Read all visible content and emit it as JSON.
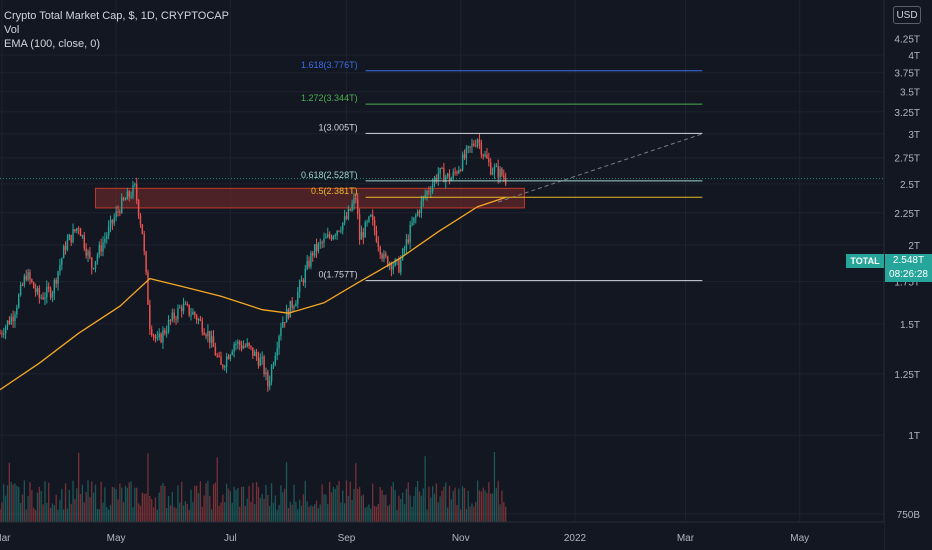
{
  "legend": {
    "symbol": "Crypto Total Market Cap, $, 1D, CRYPTOCAP",
    "vol": "Vol",
    "ema": "EMA (100, close, 0)"
  },
  "currency_button": "USD",
  "price_badge": {
    "name": "TOTAL",
    "value": "2.548T",
    "countdown": "08:26:28"
  },
  "colors": {
    "background": "#131722",
    "up": "#26a69a",
    "down": "#ef5350",
    "ema": "#f5a623",
    "zone_fill": "#7b2b2b",
    "zone_border": "#c0392b"
  },
  "chart_data": {
    "type": "candlestick",
    "symbol": "TOTAL",
    "y_axis": {
      "scale": "log",
      "ticks": [
        "4T",
        "3.75T",
        "3.5T",
        "3.25T",
        "3T",
        "2.75T",
        "2.5T",
        "2.25T",
        "2T",
        "1.75T",
        "1.5T",
        "1.25T",
        "1T",
        "750B"
      ],
      "tick_values": [
        4.0,
        3.75,
        3.5,
        3.25,
        3.0,
        2.75,
        2.5,
        2.25,
        2.0,
        1.75,
        1.5,
        1.25,
        1.0,
        0.75
      ],
      "partial_top_tick": "4.25T",
      "range": [
        0.72,
        4.3
      ]
    },
    "x_axis": {
      "ticks": [
        "Mar",
        "May",
        "Jul",
        "Sep",
        "Nov",
        "2022",
        "Mar",
        "May"
      ],
      "tick_dates": [
        "2021-03-01",
        "2021-05-01",
        "2021-07-01",
        "2021-09-01",
        "2021-11-01",
        "2022-01-01",
        "2022-03-01",
        "2022-05-01"
      ],
      "range": [
        "2021-02-28",
        "2022-06-15"
      ]
    },
    "price_path": [
      [
        "2021-02-28",
        1.45
      ],
      [
        "2021-03-07",
        1.55
      ],
      [
        "2021-03-14",
        1.8
      ],
      [
        "2021-03-21",
        1.65
      ],
      [
        "2021-03-28",
        1.7
      ],
      [
        "2021-04-04",
        2.0
      ],
      [
        "2021-04-11",
        2.15
      ],
      [
        "2021-04-18",
        1.85
      ],
      [
        "2021-04-25",
        2.05
      ],
      [
        "2021-05-03",
        2.3
      ],
      [
        "2021-05-11",
        2.46
      ],
      [
        "2021-05-15",
        2.1
      ],
      [
        "2021-05-19",
        1.5
      ],
      [
        "2021-05-23",
        1.4
      ],
      [
        "2021-05-29",
        1.5
      ],
      [
        "2021-06-05",
        1.6
      ],
      [
        "2021-06-12",
        1.55
      ],
      [
        "2021-06-19",
        1.45
      ],
      [
        "2021-06-26",
        1.28
      ],
      [
        "2021-07-03",
        1.4
      ],
      [
        "2021-07-10",
        1.38
      ],
      [
        "2021-07-18",
        1.3
      ],
      [
        "2021-07-21",
        1.2
      ],
      [
        "2021-07-28",
        1.5
      ],
      [
        "2021-08-05",
        1.65
      ],
      [
        "2021-08-14",
        1.95
      ],
      [
        "2021-08-22",
        2.05
      ],
      [
        "2021-09-01",
        2.2
      ],
      [
        "2021-09-06",
        2.38
      ],
      [
        "2021-09-08",
        2.05
      ],
      [
        "2021-09-14",
        2.2
      ],
      [
        "2021-09-21",
        1.9
      ],
      [
        "2021-09-29",
        1.85
      ],
      [
        "2021-10-06",
        2.15
      ],
      [
        "2021-10-13",
        2.4
      ],
      [
        "2021-10-20",
        2.6
      ],
      [
        "2021-10-27",
        2.55
      ],
      [
        "2021-11-03",
        2.75
      ],
      [
        "2021-11-10",
        2.96
      ],
      [
        "2021-11-13",
        2.8
      ],
      [
        "2021-11-17",
        2.65
      ],
      [
        "2021-11-22",
        2.6
      ],
      [
        "2021-11-25",
        2.548
      ]
    ],
    "ema": {
      "name": "EMA (100, close, 0)",
      "points": [
        [
          "2021-02-28",
          1.18
        ],
        [
          "2021-03-21",
          1.3
        ],
        [
          "2021-04-11",
          1.45
        ],
        [
          "2021-05-03",
          1.6
        ],
        [
          "2021-05-19",
          1.77
        ],
        [
          "2021-06-05",
          1.72
        ],
        [
          "2021-06-26",
          1.66
        ],
        [
          "2021-07-18",
          1.58
        ],
        [
          "2021-08-01",
          1.56
        ],
        [
          "2021-08-20",
          1.62
        ],
        [
          "2021-09-08",
          1.75
        ],
        [
          "2021-09-29",
          1.9
        ],
        [
          "2021-10-20",
          2.1
        ],
        [
          "2021-11-10",
          2.3
        ],
        [
          "2021-11-25",
          2.38
        ]
      ]
    },
    "fibonacci": [
      {
        "label": "1.618(3.776T)",
        "value": 3.776,
        "color": "#3b6ee8"
      },
      {
        "label": "1.272(3.344T)",
        "value": 3.344,
        "color": "#4caf50"
      },
      {
        "label": "1(3.005T)",
        "value": 3.005,
        "color": "#d1d4dc"
      },
      {
        "label": "0.618(2.528T)",
        "value": 2.528,
        "color": "#9ed3c9"
      },
      {
        "label": "0.5(2.381T)",
        "value": 2.381,
        "color": "#e8b923"
      },
      {
        "label": "0(1.757T)",
        "value": 1.757,
        "color": "#d1d4dc"
      }
    ],
    "fib_x_range": [
      "2021-09-08",
      "2022-03-10"
    ],
    "zone": {
      "x_range": [
        "2021-04-20",
        "2021-12-05"
      ],
      "y_range": [
        2.29,
        2.46
      ]
    },
    "trendline": {
      "from": [
        "2021-11-21",
        "2.34"
      ],
      "to": [
        "2022-03-10",
        "3.00"
      ]
    },
    "current_value": 2.548,
    "volume_approx": true
  }
}
